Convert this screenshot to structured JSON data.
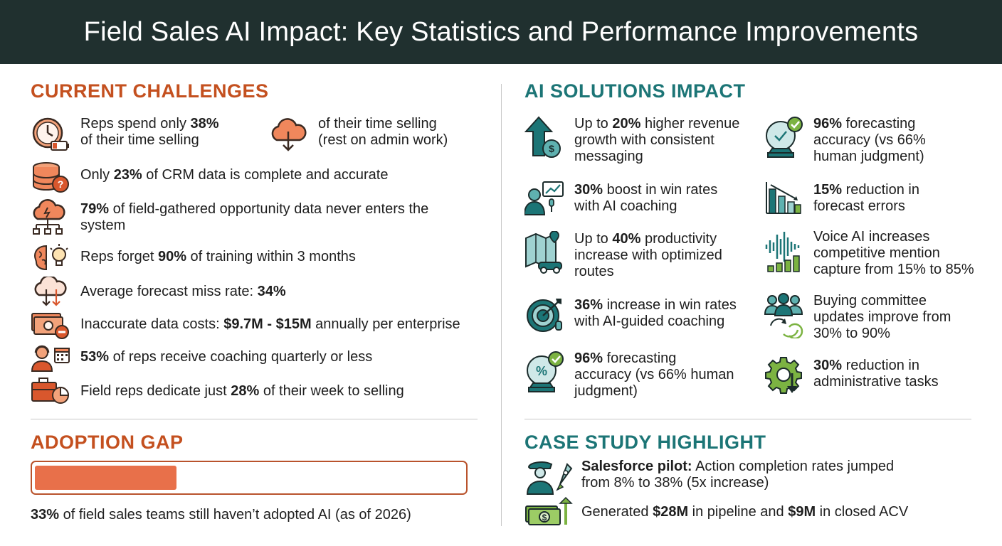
{
  "header": {
    "title": "Field Sales AI Impact: Key Statistics and Performance Improvements"
  },
  "colors": {
    "header_bg": "#20302f",
    "challenge_accent": "#c4501f",
    "solution_accent": "#1c7576",
    "bar_fill": "#e8704a",
    "green_accent": "#7cb342"
  },
  "challenges": {
    "title": "CURRENT CHALLENGES",
    "items": [
      {
        "icon": "clock-battery-icon",
        "pre": "Reps spend only ",
        "bold": "38%",
        "post": "",
        "line2": "of their time selling"
      },
      {
        "icon": "cloud-download-icon",
        "pre": "",
        "bold": "",
        "post": "of their time selling",
        "line2": "(rest on admin work)"
      },
      {
        "icon": "database-question-icon",
        "pre": "Only ",
        "bold": "23%",
        "post": " of CRM data is complete and accurate"
      },
      {
        "icon": "cloud-network-icon",
        "pre": "",
        "bold": "79%",
        "post": " of field-gathered opportunity data never enters the",
        "line2": "system"
      },
      {
        "icon": "brain-lightbulb-icon",
        "pre": "Reps forget ",
        "bold": "90%",
        "post": " of training within 3 months"
      },
      {
        "icon": "cloud-arrows-icon",
        "pre": "Average forecast miss rate: ",
        "bold": "34%",
        "post": ""
      },
      {
        "icon": "money-minus-icon",
        "pre": "Inaccurate data costs: ",
        "bold": "$9.7M - $15M",
        "post": " annually per enterprise"
      },
      {
        "icon": "headset-calendar-icon",
        "pre": "",
        "bold": "53%",
        "post": " of reps receive coaching quarterly or less"
      },
      {
        "icon": "briefcase-pie-icon",
        "pre": "Field reps dedicate just ",
        "bold": "28%",
        "post": " of their week to selling"
      }
    ]
  },
  "solutions": {
    "title": "AI SOLUTIONS IMPACT",
    "left": [
      {
        "icon": "arrow-up-dollar-icon",
        "l1b": "",
        "l1": "Up to ",
        "l1bold": "20%",
        "l1post": " higher revenue",
        "l2": "growth with consistent",
        "l3": "messaging"
      },
      {
        "icon": "coach-chart-icon",
        "l1": "",
        "l1bold": "30%",
        "l1post": " boost in win rates",
        "l2": "with AI coaching",
        "l3": ""
      },
      {
        "icon": "map-car-icon",
        "l1": "Up to ",
        "l1bold": "40%",
        "l1post": " productivity",
        "l2": "increase with optimized",
        "l3": "routes"
      },
      {
        "icon": "target-headset-icon",
        "l1": "",
        "l1bold": "36%",
        "l1post": " increase in win rates",
        "l2": "with AI-guided coaching",
        "l3": ""
      },
      {
        "icon": "crystal-ball-percent-icon",
        "l1": "",
        "l1bold": "96%",
        "l1post": " forecasting",
        "l2": "accuracy (vs 66% human",
        "l3": "judgment)"
      }
    ],
    "right": [
      {
        "icon": "crystal-ball-check-icon",
        "l1": "",
        "l1bold": "96%",
        "l1post": " forecasting",
        "l2": "accuracy (vs 66%",
        "l3": "human judgment)"
      },
      {
        "icon": "bar-chart-down-icon",
        "l1": "",
        "l1bold": "15%",
        "l1post": " reduction in",
        "l2": "forecast errors",
        "l3": ""
      },
      {
        "icon": "voice-wave-icon",
        "l1": "Voice AI increases",
        "l1bold": "",
        "l1post": "",
        "l2": "competitive mention",
        "l3": "capture from 15% to 85%"
      },
      {
        "icon": "team-refresh-icon",
        "l1": "Buying committee",
        "l1bold": "",
        "l1post": "",
        "l2": "updates improve from",
        "l3": "30% to 90%"
      },
      {
        "icon": "gear-down-icon",
        "l1": "",
        "l1bold": "30%",
        "l1post": " reduction in",
        "l2": "administrative tasks",
        "l3": ""
      }
    ]
  },
  "adoption": {
    "title": "ADOPTION GAP",
    "progress": 0.33,
    "pre": "",
    "bold": "33%",
    "post": " of field sales teams still haven’t adopted AI (as of 2026)"
  },
  "case_study": {
    "title": "CASE STUDY HIGHLIGHT",
    "item1": {
      "icon": "pilot-rocket-icon",
      "bold": "Salesforce pilot:",
      "post": " Action completion rates jumped",
      "line2": "from 8% to 38% (5x increase)"
    },
    "item2": {
      "icon": "money-arrow-icon",
      "pre": "Generated ",
      "bold1": "$28M",
      "mid": " in pipeline and ",
      "bold2": "$9M",
      "post": " in closed ACV"
    }
  }
}
